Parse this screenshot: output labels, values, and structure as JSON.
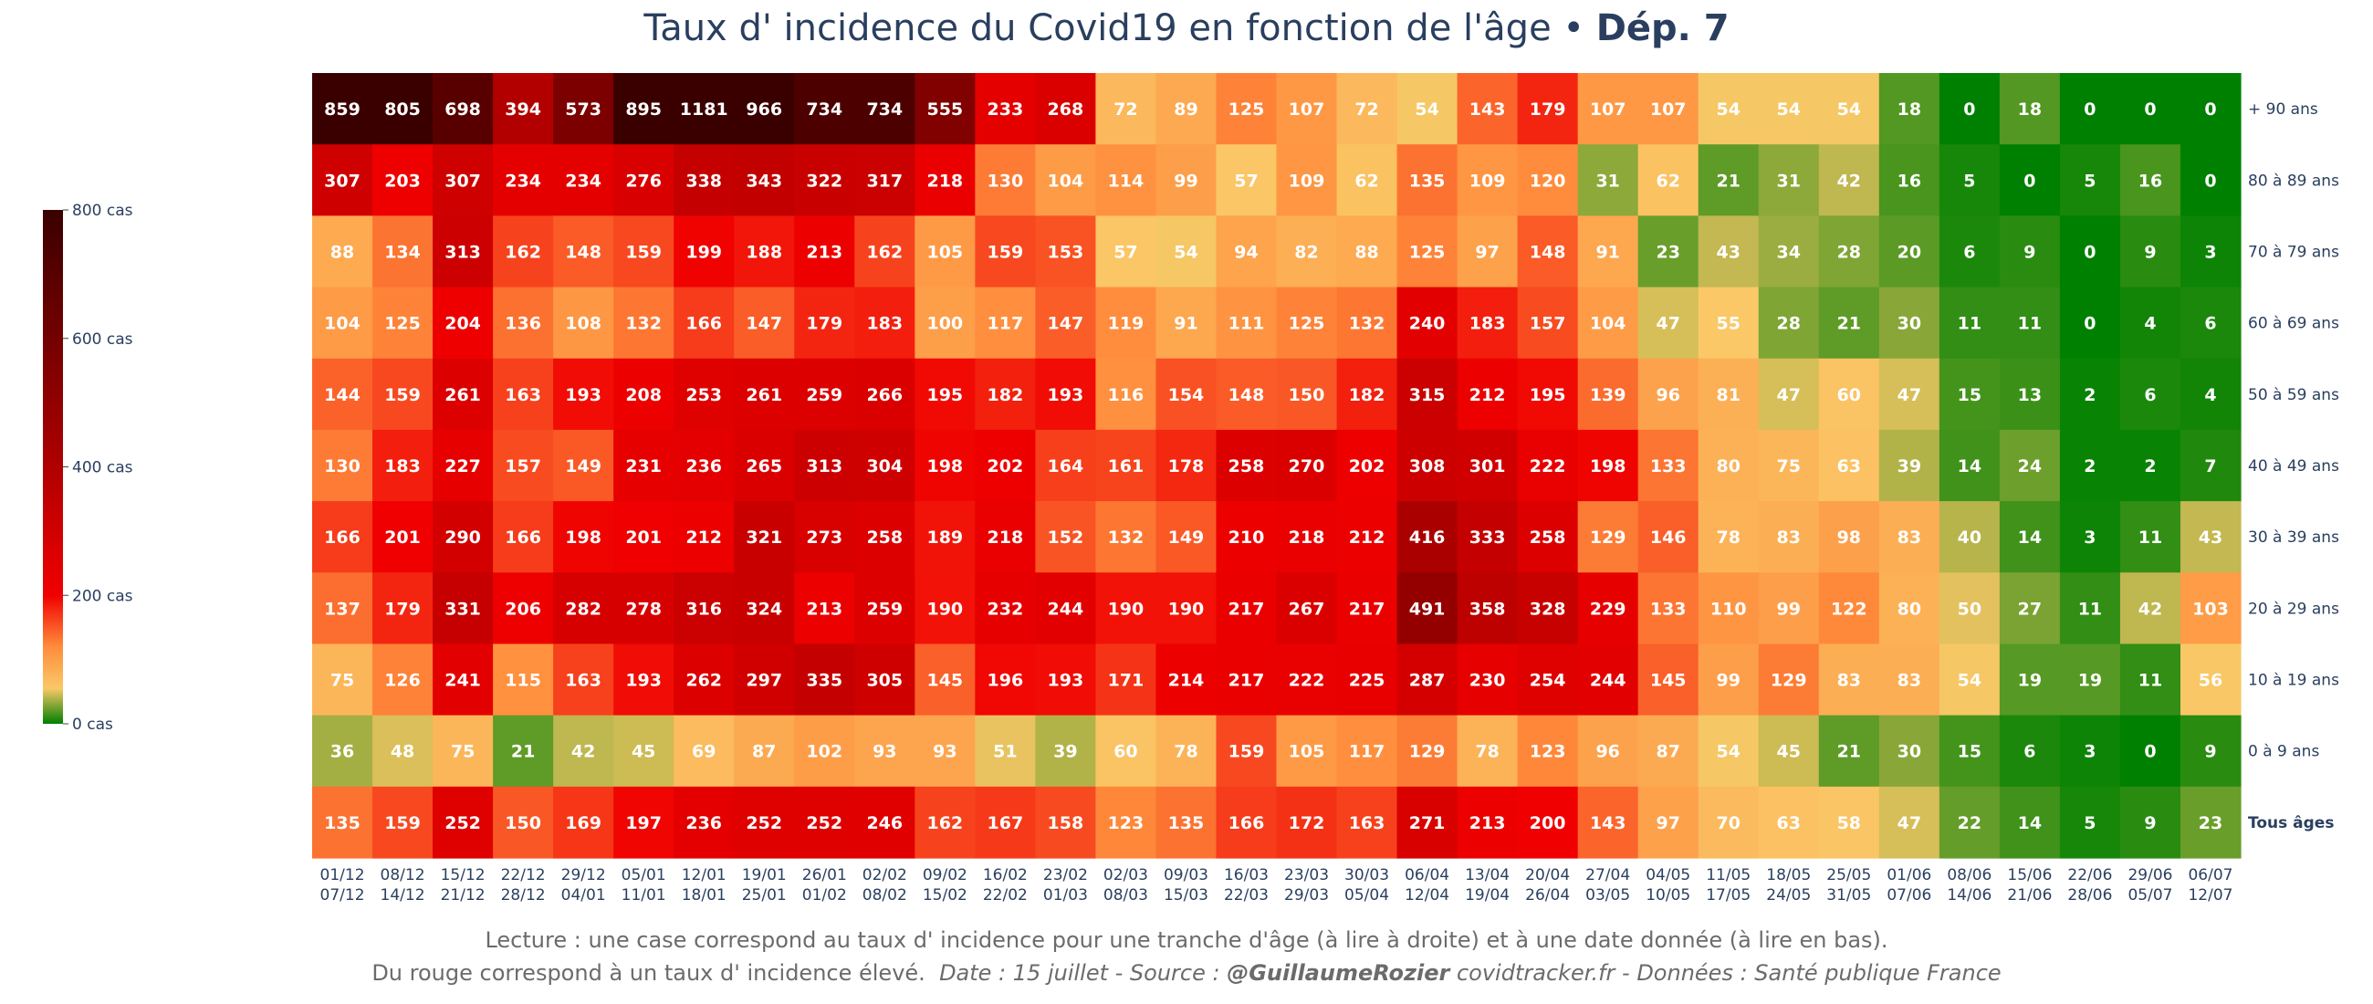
{
  "title": {
    "main": "Taux d' incidence du Covid19 en fonction de l'âge",
    "sep": " • ",
    "dept": "Dép. 7"
  },
  "footer": {
    "line1": "Lecture : une case correspond au taux d' incidence pour une tranche d'âge (à lire à droite) et à une date donnée (à lire en bas).",
    "line2a": "Du rouge correspond à un taux d' incidence élevé.",
    "line2b": "Date : 15 juillet - Source : ",
    "line2c": "@GuillaumeRozier",
    "line2d": " covidtracker.fr - Données : Santé publique France"
  },
  "colorbar": {
    "ticks": [
      {
        "value": 800,
        "label": "800 cas"
      },
      {
        "value": 600,
        "label": "600 cas"
      },
      {
        "value": 400,
        "label": "400 cas"
      },
      {
        "value": 200,
        "label": "200 cas"
      },
      {
        "value": 0,
        "label": "0 cas"
      }
    ],
    "stops": [
      {
        "v": 0,
        "color": "#008000"
      },
      {
        "v": 55,
        "color": "#fac867"
      },
      {
        "v": 120,
        "color": "#ff8c3c"
      },
      {
        "v": 200,
        "color": "#f00000"
      },
      {
        "v": 450,
        "color": "#a00000"
      },
      {
        "v": 800,
        "color": "#3a0000"
      }
    ]
  },
  "chart_data": {
    "type": "heatmap",
    "zmin": 0,
    "zmax": 800,
    "x": [
      [
        "01/12",
        "07/12"
      ],
      [
        "08/12",
        "14/12"
      ],
      [
        "15/12",
        "21/12"
      ],
      [
        "22/12",
        "28/12"
      ],
      [
        "29/12",
        "04/01"
      ],
      [
        "05/01",
        "11/01"
      ],
      [
        "12/01",
        "18/01"
      ],
      [
        "19/01",
        "25/01"
      ],
      [
        "26/01",
        "01/02"
      ],
      [
        "02/02",
        "08/02"
      ],
      [
        "09/02",
        "15/02"
      ],
      [
        "16/02",
        "22/02"
      ],
      [
        "23/02",
        "01/03"
      ],
      [
        "02/03",
        "08/03"
      ],
      [
        "09/03",
        "15/03"
      ],
      [
        "16/03",
        "22/03"
      ],
      [
        "23/03",
        "29/03"
      ],
      [
        "30/03",
        "05/04"
      ],
      [
        "06/04",
        "12/04"
      ],
      [
        "13/04",
        "19/04"
      ],
      [
        "20/04",
        "26/04"
      ],
      [
        "27/04",
        "03/05"
      ],
      [
        "04/05",
        "10/05"
      ],
      [
        "11/05",
        "17/05"
      ],
      [
        "18/05",
        "24/05"
      ],
      [
        "25/05",
        "31/05"
      ],
      [
        "01/06",
        "07/06"
      ],
      [
        "08/06",
        "14/06"
      ],
      [
        "15/06",
        "21/06"
      ],
      [
        "22/06",
        "28/06"
      ],
      [
        "29/06",
        "05/07"
      ],
      [
        "06/07",
        "12/07"
      ]
    ],
    "y": [
      "+ 90 ans",
      "80 à 89 ans",
      "70 à 79 ans",
      "60 à 69 ans",
      "50 à 59 ans",
      "40 à 49 ans",
      "30 à 39 ans",
      "20 à 29 ans",
      "10 à 19 ans",
      "0 à 9 ans",
      "Tous âges"
    ],
    "z": [
      [
        859,
        805,
        698,
        394,
        573,
        895,
        1181,
        966,
        734,
        734,
        555,
        233,
        268,
        72,
        89,
        125,
        107,
        72,
        54,
        143,
        179,
        107,
        107,
        54,
        54,
        54,
        18,
        0,
        18,
        0,
        0,
        0
      ],
      [
        307,
        203,
        307,
        234,
        234,
        276,
        338,
        343,
        322,
        317,
        218,
        130,
        104,
        114,
        99,
        57,
        109,
        62,
        135,
        109,
        120,
        31,
        62,
        21,
        31,
        42,
        16,
        5,
        0,
        5,
        16,
        0
      ],
      [
        88,
        134,
        313,
        162,
        148,
        159,
        199,
        188,
        213,
        162,
        105,
        159,
        153,
        57,
        54,
        94,
        82,
        88,
        125,
        97,
        148,
        91,
        23,
        43,
        34,
        28,
        20,
        6,
        9,
        0,
        9,
        3
      ],
      [
        104,
        125,
        204,
        136,
        108,
        132,
        166,
        147,
        179,
        183,
        100,
        117,
        147,
        119,
        91,
        111,
        125,
        132,
        240,
        183,
        157,
        104,
        47,
        55,
        28,
        21,
        30,
        11,
        11,
        0,
        4,
        6
      ],
      [
        144,
        159,
        261,
        163,
        193,
        208,
        253,
        261,
        259,
        266,
        195,
        182,
        193,
        116,
        154,
        148,
        150,
        182,
        315,
        212,
        195,
        139,
        96,
        81,
        47,
        60,
        47,
        15,
        13,
        2,
        6,
        4
      ],
      [
        130,
        183,
        227,
        157,
        149,
        231,
        236,
        265,
        313,
        304,
        198,
        202,
        164,
        161,
        178,
        258,
        270,
        202,
        308,
        301,
        222,
        198,
        133,
        80,
        75,
        63,
        39,
        14,
        24,
        2,
        2,
        7
      ],
      [
        166,
        201,
        290,
        166,
        198,
        201,
        212,
        321,
        273,
        258,
        189,
        218,
        152,
        132,
        149,
        210,
        218,
        212,
        416,
        333,
        258,
        129,
        146,
        78,
        83,
        98,
        83,
        40,
        14,
        3,
        11,
        43
      ],
      [
        137,
        179,
        331,
        206,
        282,
        278,
        316,
        324,
        213,
        259,
        190,
        232,
        244,
        190,
        190,
        217,
        267,
        217,
        491,
        358,
        328,
        229,
        133,
        110,
        99,
        122,
        80,
        50,
        27,
        11,
        42,
        103
      ],
      [
        75,
        126,
        241,
        115,
        163,
        193,
        262,
        297,
        335,
        305,
        145,
        196,
        193,
        171,
        214,
        217,
        222,
        225,
        287,
        230,
        254,
        244,
        145,
        99,
        129,
        83,
        83,
        54,
        19,
        19,
        11,
        56
      ],
      [
        36,
        48,
        75,
        21,
        42,
        45,
        69,
        87,
        102,
        93,
        93,
        51,
        39,
        60,
        78,
        159,
        105,
        117,
        129,
        78,
        123,
        96,
        87,
        54,
        45,
        21,
        30,
        15,
        6,
        3,
        0,
        9
      ],
      [
        135,
        159,
        252,
        150,
        169,
        197,
        236,
        252,
        252,
        246,
        162,
        167,
        158,
        123,
        135,
        166,
        172,
        163,
        271,
        213,
        200,
        143,
        97,
        70,
        63,
        58,
        47,
        22,
        14,
        5,
        9,
        23
      ]
    ]
  }
}
